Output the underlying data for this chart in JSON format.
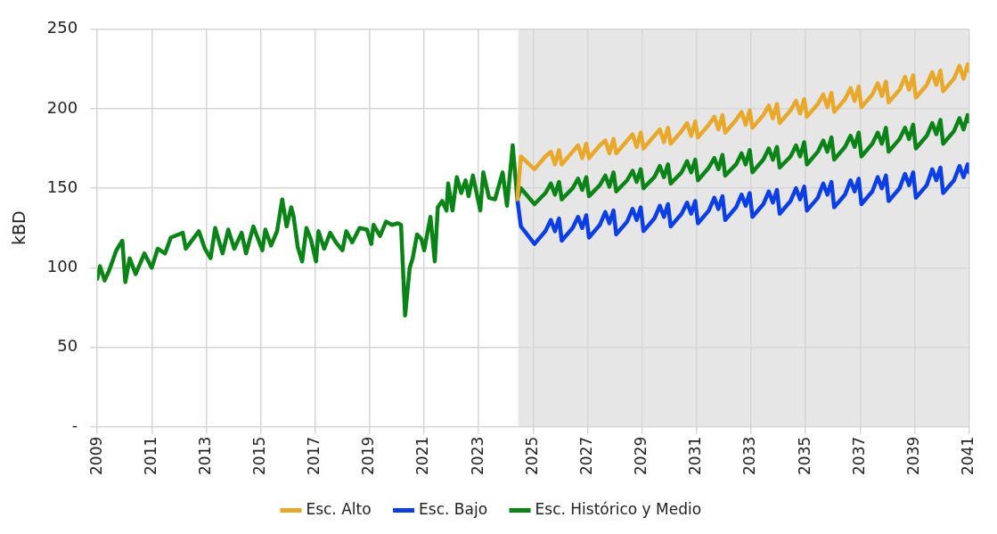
{
  "chart_data": {
    "type": "line",
    "ylabel": "kBD",
    "xlim": [
      2009,
      2041
    ],
    "xticks": [
      2009,
      2011,
      2013,
      2015,
      2017,
      2019,
      2021,
      2023,
      2025,
      2027,
      2029,
      2031,
      2033,
      2035,
      2037,
      2039,
      2041
    ],
    "ylim": [
      0,
      250
    ],
    "yticks": [
      {
        "value": 0,
        "label": "-"
      },
      50,
      100,
      150,
      200,
      250
    ],
    "grid": true,
    "legend": "bottom",
    "line_style": "solid",
    "marker": "none",
    "bands": [
      {
        "axis": "x",
        "from": 2024.45,
        "to": 2041,
        "color": "#e6e6e6"
      }
    ],
    "series": [
      {
        "name": "Esc. Alto",
        "color": "#e8a92b",
        "x": [
          2024.42,
          2024.55,
          2025.05,
          2025.45,
          2025.65,
          2025.8,
          2025.95,
          2026.05,
          2026.45,
          2026.65,
          2026.8,
          2026.95,
          2027.05,
          2027.45,
          2027.65,
          2027.8,
          2027.95,
          2028.05,
          2028.45,
          2028.65,
          2028.8,
          2028.95,
          2029.05,
          2029.45,
          2029.65,
          2029.8,
          2029.95,
          2030.05,
          2030.45,
          2030.65,
          2030.8,
          2030.95,
          2031.05,
          2031.45,
          2031.65,
          2031.8,
          2031.95,
          2032.05,
          2032.45,
          2032.65,
          2032.8,
          2032.95,
          2033.05,
          2033.45,
          2033.65,
          2033.8,
          2033.95,
          2034.05,
          2034.45,
          2034.65,
          2034.8,
          2034.95,
          2035.05,
          2035.45,
          2035.65,
          2035.8,
          2035.95,
          2036.05,
          2036.45,
          2036.65,
          2036.8,
          2036.95,
          2037.05,
          2037.45,
          2037.65,
          2037.8,
          2037.95,
          2038.05,
          2038.45,
          2038.65,
          2038.8,
          2038.95,
          2039.05,
          2039.45,
          2039.65,
          2039.8,
          2039.95,
          2040.05,
          2040.45,
          2040.65,
          2040.8,
          2040.95,
          2041
        ],
        "values": [
          143,
          170,
          162,
          170,
          173,
          165,
          174,
          165,
          173,
          177,
          169,
          178,
          169,
          177,
          180,
          172,
          181,
          172,
          180,
          184,
          176,
          185,
          175,
          183,
          187,
          179,
          188,
          178,
          186,
          191,
          183,
          192,
          182,
          190,
          195,
          187,
          196,
          185,
          193,
          198,
          190,
          199,
          188,
          196,
          202,
          194,
          203,
          191,
          199,
          205,
          197,
          206,
          195,
          203,
          209,
          201,
          210,
          198,
          206,
          213,
          205,
          214,
          201,
          209,
          216,
          208,
          217,
          204,
          212,
          220,
          212,
          221,
          207,
          215,
          223,
          215,
          224,
          211,
          219,
          227,
          219,
          228,
          224
        ]
      },
      {
        "name": "Esc. Bajo",
        "color": "#0a3ee6",
        "x": [
          2024.42,
          2024.55,
          2025.05,
          2025.45,
          2025.65,
          2025.8,
          2025.95,
          2026.05,
          2026.45,
          2026.65,
          2026.8,
          2026.95,
          2027.05,
          2027.45,
          2027.65,
          2027.8,
          2027.95,
          2028.05,
          2028.45,
          2028.65,
          2028.8,
          2028.95,
          2029.05,
          2029.45,
          2029.65,
          2029.8,
          2029.95,
          2030.05,
          2030.45,
          2030.65,
          2030.8,
          2030.95,
          2031.05,
          2031.45,
          2031.65,
          2031.8,
          2031.95,
          2032.05,
          2032.45,
          2032.65,
          2032.8,
          2032.95,
          2033.05,
          2033.45,
          2033.65,
          2033.8,
          2033.95,
          2034.05,
          2034.45,
          2034.65,
          2034.8,
          2034.95,
          2035.05,
          2035.45,
          2035.65,
          2035.8,
          2035.95,
          2036.05,
          2036.45,
          2036.65,
          2036.8,
          2036.95,
          2037.05,
          2037.45,
          2037.65,
          2037.8,
          2037.95,
          2038.05,
          2038.45,
          2038.65,
          2038.8,
          2038.95,
          2039.05,
          2039.45,
          2039.65,
          2039.8,
          2039.95,
          2040.05,
          2040.45,
          2040.65,
          2040.8,
          2040.95,
          2041
        ],
        "values": [
          143,
          126,
          115,
          123,
          130,
          123,
          131,
          117,
          125,
          132,
          125,
          133,
          119,
          127,
          135,
          128,
          136,
          121,
          129,
          137,
          130,
          138,
          123,
          131,
          139,
          132,
          140,
          126,
          134,
          141,
          134,
          142,
          128,
          136,
          144,
          137,
          145,
          130,
          138,
          146,
          139,
          147,
          132,
          140,
          148,
          141,
          149,
          134,
          142,
          150,
          143,
          151,
          136,
          144,
          153,
          146,
          154,
          138,
          146,
          155,
          148,
          156,
          140,
          148,
          157,
          150,
          158,
          142,
          150,
          159,
          152,
          160,
          144,
          152,
          162,
          155,
          163,
          147,
          155,
          164,
          157,
          165,
          160
        ]
      },
      {
        "name": "Esc. Histórico y Medio",
        "color": "#0a8417",
        "x": [
          2009.0,
          2009.1,
          2009.27,
          2009.43,
          2009.7,
          2009.92,
          2010.03,
          2010.19,
          2010.41,
          2010.73,
          2011.0,
          2011.22,
          2011.49,
          2011.7,
          2012.14,
          2012.25,
          2012.73,
          2012.95,
          2013.16,
          2013.33,
          2013.6,
          2013.81,
          2014.03,
          2014.3,
          2014.46,
          2014.73,
          2015.06,
          2015.17,
          2015.38,
          2015.6,
          2015.79,
          2015.95,
          2016.12,
          2016.2,
          2016.36,
          2016.52,
          2016.68,
          2016.84,
          2017.03,
          2017.12,
          2017.33,
          2017.55,
          2017.76,
          2018.0,
          2018.14,
          2018.36,
          2018.63,
          2018.9,
          2019.06,
          2019.14,
          2019.38,
          2019.6,
          2019.82,
          2020.04,
          2020.15,
          2020.3,
          2020.47,
          2020.58,
          2020.74,
          2020.9,
          2021.0,
          2021.23,
          2021.39,
          2021.5,
          2021.66,
          2021.82,
          2021.88,
          2022.04,
          2022.2,
          2022.36,
          2022.52,
          2022.63,
          2022.79,
          2023.06,
          2023.17,
          2023.38,
          2023.6,
          2023.88,
          2024.04,
          2024.25,
          2024.42,
          2024.55,
          2025.05,
          2025.45,
          2025.65,
          2025.8,
          2025.95,
          2026.05,
          2026.45,
          2026.65,
          2026.8,
          2026.95,
          2027.05,
          2027.45,
          2027.65,
          2027.8,
          2027.95,
          2028.05,
          2028.45,
          2028.65,
          2028.8,
          2028.95,
          2029.05,
          2029.45,
          2029.65,
          2029.8,
          2029.95,
          2030.05,
          2030.45,
          2030.65,
          2030.8,
          2030.95,
          2031.05,
          2031.45,
          2031.65,
          2031.8,
          2031.95,
          2032.05,
          2032.45,
          2032.65,
          2032.8,
          2032.95,
          2033.05,
          2033.45,
          2033.65,
          2033.8,
          2033.95,
          2034.05,
          2034.45,
          2034.65,
          2034.8,
          2034.95,
          2035.05,
          2035.45,
          2035.65,
          2035.8,
          2035.95,
          2036.05,
          2036.45,
          2036.65,
          2036.8,
          2036.95,
          2037.05,
          2037.45,
          2037.65,
          2037.8,
          2037.95,
          2038.05,
          2038.45,
          2038.65,
          2038.8,
          2038.95,
          2039.05,
          2039.45,
          2039.65,
          2039.8,
          2039.95,
          2040.05,
          2040.45,
          2040.65,
          2040.8,
          2040.95,
          2041
        ],
        "values": [
          93,
          101,
          92,
          98,
          111,
          117,
          91,
          106,
          96,
          109,
          100,
          112,
          109,
          119,
          122,
          112,
          123,
          112,
          106,
          125,
          109,
          124,
          112,
          122,
          109,
          126,
          111,
          124,
          114,
          123,
          143,
          126,
          138,
          133,
          113,
          104,
          125,
          118,
          104,
          123,
          112,
          122,
          116,
          111,
          123,
          116,
          125,
          124,
          115,
          127,
          120,
          129,
          127,
          128,
          127,
          70,
          100,
          106,
          121,
          118,
          111,
          132,
          104,
          138,
          142,
          136,
          153,
          136,
          157,
          147,
          155,
          145,
          158,
          136,
          160,
          144,
          143,
          160,
          139,
          177,
          143,
          150,
          140,
          147,
          153,
          146,
          154,
          143,
          150,
          156,
          149,
          157,
          145,
          152,
          158,
          151,
          160,
          148,
          155,
          161,
          154,
          162,
          150,
          157,
          164,
          157,
          165,
          153,
          160,
          167,
          160,
          168,
          155,
          163,
          169,
          162,
          171,
          158,
          165,
          172,
          165,
          174,
          160,
          168,
          175,
          168,
          176,
          163,
          170,
          177,
          170,
          179,
          165,
          173,
          180,
          173,
          182,
          168,
          176,
          183,
          176,
          185,
          170,
          178,
          185,
          178,
          188,
          173,
          181,
          188,
          181,
          190,
          175,
          183,
          191,
          184,
          193,
          178,
          186,
          194,
          187,
          196,
          192
        ]
      }
    ]
  }
}
